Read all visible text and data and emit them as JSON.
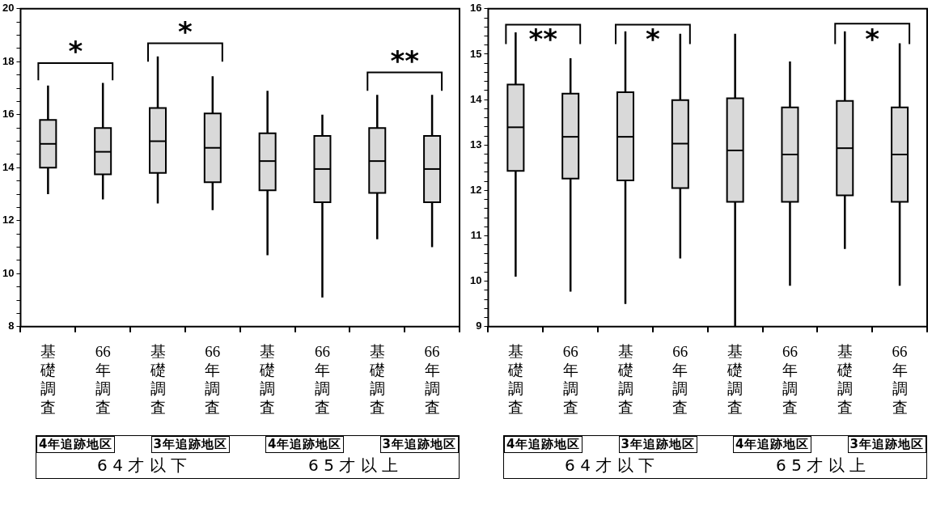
{
  "chart_data": [
    {
      "type": "box",
      "color": "#d9d9d9",
      "categories": [
        "基礎調査",
        "66年調査",
        "基礎調査",
        "66年調査",
        "基礎調査",
        "66年調査",
        "基礎調査",
        "66年調査"
      ],
      "boxes": [
        {
          "low": 13.0,
          "q1": 14.0,
          "median": 14.9,
          "q3": 15.8,
          "high": 17.1
        },
        {
          "low": 12.8,
          "q1": 13.75,
          "median": 14.6,
          "q3": 15.5,
          "high": 17.2
        },
        {
          "low": 12.65,
          "q1": 13.8,
          "median": 15.0,
          "q3": 16.25,
          "high": 18.2
        },
        {
          "low": 12.4,
          "q1": 13.45,
          "median": 14.75,
          "q3": 16.05,
          "high": 17.45
        },
        {
          "low": 10.7,
          "q1": 13.15,
          "median": 14.25,
          "q3": 15.3,
          "high": 16.9
        },
        {
          "low": 9.1,
          "q1": 12.7,
          "median": 13.95,
          "q3": 15.2,
          "high": 16.0
        },
        {
          "low": 11.3,
          "q1": 13.05,
          "median": 14.25,
          "q3": 15.5,
          "high": 16.75
        },
        {
          "low": 11.0,
          "q1": 12.7,
          "median": 13.95,
          "q3": 15.2,
          "high": 16.75
        }
      ],
      "ylim": [
        8,
        20
      ],
      "yticks": [
        8,
        {
          "value": 8.5,
          "label": null
        },
        {
          "value": 9,
          "label": null
        },
        {
          "value": 9.5,
          "label": null
        },
        10,
        {
          "value": 10.5,
          "label": null
        },
        {
          "value": 11,
          "label": null
        },
        {
          "value": 11.5,
          "label": null
        },
        12,
        {
          "value": 12.5,
          "label": null
        },
        {
          "value": 13,
          "label": null
        },
        {
          "value": 13.5,
          "label": null
        },
        14,
        {
          "value": 14.5,
          "label": null
        },
        {
          "value": 15,
          "label": null
        },
        {
          "value": 15.5,
          "label": null
        },
        16,
        {
          "value": 16.5,
          "label": null
        },
        {
          "value": 17,
          "label": null
        },
        {
          "value": 17.5,
          "label": null
        },
        18,
        {
          "value": 18.5,
          "label": null
        },
        {
          "value": 19,
          "label": null
        },
        {
          "value": 19.5,
          "label": null
        },
        20
      ],
      "annotations": [
        "*",
        "*",
        "**",
        "4年追跡地区",
        "3年追跡地区",
        "4年追跡地区",
        "3年追跡地区",
        "6 4 才 以 下",
        "6 5 才 以 上"
      ]
    },
    {
      "type": "box",
      "color": "#d9d9d9",
      "categories": [
        "基礎調査",
        "66年調査",
        "基礎調査",
        "66年調査",
        "基礎調査",
        "66年調査",
        "基礎調査",
        "66年調査"
      ],
      "boxes": [
        {
          "low": 10.1,
          "q1": 12.43,
          "median": 13.39,
          "q3": 14.33,
          "high": 15.48
        },
        {
          "low": 9.77,
          "q1": 12.26,
          "median": 13.18,
          "q3": 14.13,
          "high": 14.91
        },
        {
          "low": 9.5,
          "q1": 12.22,
          "median": 13.18,
          "q3": 14.16,
          "high": 15.5
        },
        {
          "low": 10.5,
          "q1": 12.05,
          "median": 13.03,
          "q3": 13.99,
          "high": 15.45
        },
        {
          "low": 9.0,
          "q1": 11.75,
          "median": 12.88,
          "q3": 14.03,
          "high": 15.45
        },
        {
          "low": 9.9,
          "q1": 11.75,
          "median": 12.79,
          "q3": 13.83,
          "high": 14.84
        },
        {
          "low": 10.71,
          "q1": 11.89,
          "median": 12.93,
          "q3": 13.97,
          "high": 15.5
        },
        {
          "low": 9.9,
          "q1": 11.75,
          "median": 12.79,
          "q3": 13.83,
          "high": 15.24
        }
      ],
      "ylim": [
        9,
        16
      ],
      "yticks": [
        9,
        {
          "value": 9.2,
          "label": null
        },
        {
          "value": 9.4,
          "label": null
        },
        {
          "value": 9.6,
          "label": null
        },
        {
          "value": 9.8,
          "label": null
        },
        10,
        {
          "value": 10.2,
          "label": null
        },
        {
          "value": 10.4,
          "label": null
        },
        {
          "value": 10.6,
          "label": null
        },
        {
          "value": 10.8,
          "label": null
        },
        11,
        {
          "value": 11.2,
          "label": null
        },
        {
          "value": 11.4,
          "label": null
        },
        {
          "value": 11.6,
          "label": null
        },
        {
          "value": 11.8,
          "label": null
        },
        12,
        {
          "value": 12.2,
          "label": null
        },
        {
          "value": 12.4,
          "label": null
        },
        {
          "value": 12.6,
          "label": null
        },
        {
          "value": 12.8,
          "label": null
        },
        13,
        {
          "value": 13.2,
          "label": null
        },
        {
          "value": 13.4,
          "label": null
        },
        {
          "value": 13.6,
          "label": null
        },
        {
          "value": 13.8,
          "label": null
        },
        14,
        {
          "value": 14.2,
          "label": null
        },
        {
          "value": 14.4,
          "label": null
        },
        {
          "value": 14.6,
          "label": null
        },
        {
          "value": 14.8,
          "label": null
        },
        15,
        {
          "value": 15.2,
          "label": null
        },
        {
          "value": 15.4,
          "label": null
        },
        {
          "value": 15.6,
          "label": null
        },
        {
          "value": 15.8,
          "label": null
        },
        16
      ],
      "annotations": [
        "**",
        "*",
        "*",
        "4年追跡地区",
        "3年追跡地区",
        "4年追跡地区",
        "3年追跡地区",
        "6 4 才 以 下",
        "6 5 才 以 上"
      ]
    }
  ]
}
